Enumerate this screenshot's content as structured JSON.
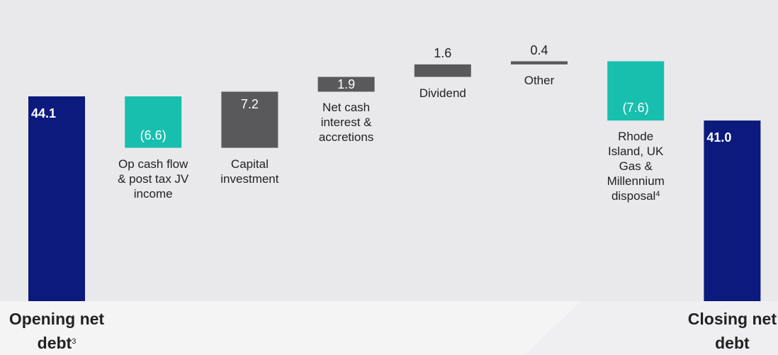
{
  "chart_data": {
    "type": "waterfall",
    "categories": [
      "Opening net debt",
      "Op cash flow & post tax JV income",
      "Capital investment",
      "Net cash interest & accretions",
      "Dividend",
      "Other",
      "Rhode Island, UK Gas & Millennium disposal",
      "Closing net debt"
    ],
    "category_notes": [
      "3",
      null,
      null,
      null,
      null,
      null,
      "4",
      null
    ],
    "values": [
      44.1,
      -6.6,
      7.2,
      1.9,
      1.6,
      0.4,
      -7.6,
      41.0
    ],
    "value_labels": [
      "44.1",
      "(6.6)",
      "7.2",
      "1.9",
      "1.6",
      "0.4",
      "(7.6)",
      "41.0"
    ],
    "kinds": [
      "total",
      "delta",
      "delta",
      "delta",
      "delta",
      "delta",
      "delta",
      "total"
    ],
    "colors": {
      "total": "#0b1a7c",
      "decrease": "#18bfae",
      "increase": "#59595b"
    }
  }
}
